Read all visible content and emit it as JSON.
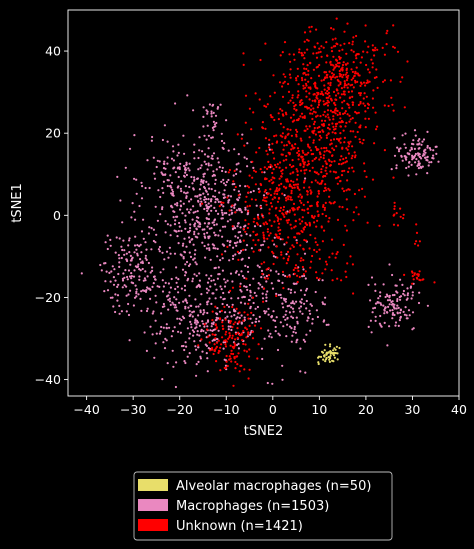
{
  "chart_data": {
    "type": "scatter",
    "title": "",
    "xlabel": "tSNE2",
    "ylabel": "tSNE1",
    "xlim": [
      -44,
      40
    ],
    "ylim": [
      -44,
      50
    ],
    "xticks": [
      -40,
      -30,
      -20,
      -10,
      0,
      10,
      20,
      30,
      40
    ],
    "yticks": [
      -40,
      -20,
      0,
      20,
      40
    ],
    "xtick_labels": [
      "−40",
      "−30",
      "−20",
      "−10",
      "0",
      "10",
      "20",
      "30",
      "40"
    ],
    "ytick_labels": [
      "−40",
      "−20",
      "0",
      "20",
      "40"
    ],
    "grid": false,
    "legend_position": "bottom-center-outside",
    "background": "#000000",
    "series": [
      {
        "name": "Alveolar macrophages (n=50)",
        "color": "#e8de6a",
        "count": 50,
        "clusters": [
          {
            "cx": 12,
            "cy": -34,
            "sx": 1.1,
            "sy": 1.2,
            "n": 50
          }
        ]
      },
      {
        "name": "Macrophages (n=1503)",
        "color": "#ea88c0",
        "count": 1503,
        "clusters": [
          {
            "cx": -14,
            "cy": 2,
            "sx": 6.5,
            "sy": 9,
            "n": 520
          },
          {
            "cx": -30,
            "cy": -14,
            "sx": 3.8,
            "sy": 5,
            "n": 170
          },
          {
            "cx": -16,
            "cy": -25,
            "sx": 5,
            "sy": 6,
            "n": 260
          },
          {
            "cx": -3,
            "cy": -22,
            "sx": 5,
            "sy": 7,
            "n": 160
          },
          {
            "cx": 31,
            "cy": 15,
            "sx": 2.2,
            "sy": 2.2,
            "n": 110
          },
          {
            "cx": 26,
            "cy": -22,
            "sx": 2.8,
            "sy": 3.2,
            "n": 120
          },
          {
            "cx": 5,
            "cy": -23,
            "sx": 3.5,
            "sy": 5,
            "n": 90
          },
          {
            "cx": -13,
            "cy": 24,
            "sx": 1.2,
            "sy": 2.2,
            "n": 25
          },
          {
            "cx": -21,
            "cy": 12,
            "sx": 3,
            "sy": 3,
            "n": 48
          }
        ]
      },
      {
        "name": "Unknown (n=1421)",
        "color": "#ff0000",
        "count": 1421,
        "clusters": [
          {
            "cx": 10,
            "cy": 22,
            "sx": 6,
            "sy": 11,
            "n": 630
          },
          {
            "cx": 3,
            "cy": 2,
            "sx": 5.5,
            "sy": 9,
            "n": 420
          },
          {
            "cx": 16,
            "cy": 36,
            "sx": 4.5,
            "sy": 5,
            "n": 170
          },
          {
            "cx": -9,
            "cy": -30,
            "sx": 3,
            "sy": 4.5,
            "n": 140
          },
          {
            "cx": 31,
            "cy": -15,
            "sx": 1,
            "sy": 1,
            "n": 20
          },
          {
            "cx": 26.5,
            "cy": 1,
            "sx": 0.8,
            "sy": 2.5,
            "n": 12
          },
          {
            "cx": 31,
            "cy": -6,
            "sx": 0.6,
            "sy": 1.5,
            "n": 6
          },
          {
            "cx": 13,
            "cy": -12,
            "sx": 3,
            "sy": 3,
            "n": 23
          }
        ]
      }
    ]
  }
}
